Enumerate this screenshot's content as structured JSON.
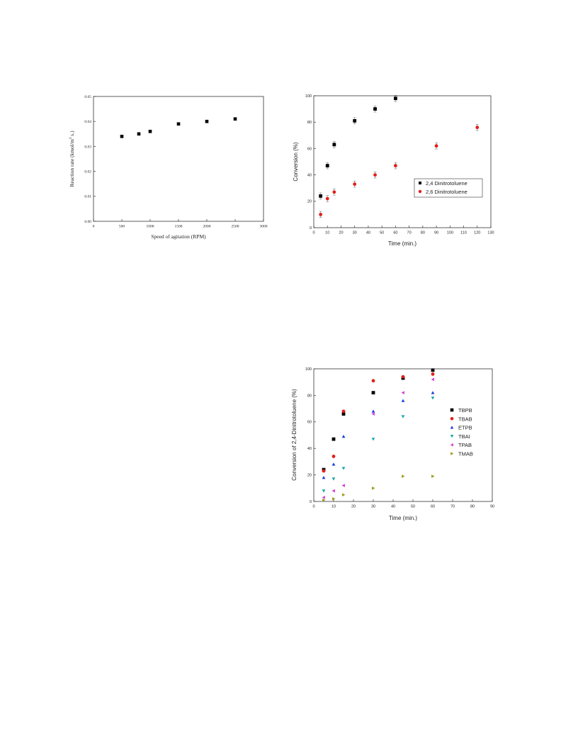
{
  "chart_data": [
    {
      "type": "scatter",
      "title": "",
      "xlabel": "Speed of agitation (RPM)",
      "ylabel_main": "Reaction rate (kmol/m",
      "ylabel_sup": "3",
      "ylabel_tail": " s.)",
      "xlim": [
        0,
        3000
      ],
      "ylim": [
        0,
        0.05
      ],
      "xticks": [
        "0",
        "500",
        "1000",
        "1500",
        "2000",
        "2500",
        "3000"
      ],
      "yticks": [
        "0.00",
        "0.01",
        "0.02",
        "0.03",
        "0.04",
        "0.05"
      ],
      "series": [
        {
          "color": "#000000",
          "marker": "square",
          "x": [
            500,
            800,
            1000,
            1500,
            2000,
            2500
          ],
          "y": [
            0.034,
            0.035,
            0.036,
            0.039,
            0.04,
            0.041
          ]
        }
      ],
      "grid": false
    },
    {
      "type": "scatter",
      "title": "",
      "xlabel": "Time (min.)",
      "ylabel": "Conversion (%)",
      "xlim": [
        0,
        130
      ],
      "ylim": [
        0,
        100
      ],
      "xticks": [
        "0",
        "10",
        "20",
        "30",
        "40",
        "50",
        "60",
        "70",
        "80",
        "90",
        "100",
        "110",
        "120",
        "130"
      ],
      "yticks": [
        "0",
        "20",
        "40",
        "60",
        "80",
        "100"
      ],
      "legend_position": "center-right",
      "series": [
        {
          "name": "2,4 Dinitrotoluene",
          "color": "#000000",
          "marker": "square",
          "x": [
            5,
            10,
            15,
            30,
            45,
            60
          ],
          "y": [
            24,
            47,
            63,
            81,
            90,
            98
          ]
        },
        {
          "name": "2,6 Dinitrotoluene",
          "color": "#e0201b",
          "marker": "circle",
          "x": [
            5,
            10,
            15,
            30,
            45,
            60,
            90,
            120
          ],
          "y": [
            10,
            22,
            27,
            33,
            40,
            47,
            62,
            76
          ]
        }
      ],
      "grid": false
    },
    {
      "type": "scatter",
      "title": "",
      "xlabel": "Time (min.)",
      "ylabel": "Conversion of 2,4-Dinitrotoluene (%)",
      "xlim": [
        0,
        90
      ],
      "ylim": [
        0,
        100
      ],
      "xticks": [
        "0",
        "10",
        "20",
        "30",
        "40",
        "50",
        "60",
        "70",
        "80",
        "90"
      ],
      "yticks": [
        "0",
        "20",
        "40",
        "60",
        "80",
        "100"
      ],
      "legend_position": "right",
      "series": [
        {
          "name": "TBPB",
          "color": "#000000",
          "marker": "square",
          "x": [
            5,
            10,
            15,
            30,
            45,
            60
          ],
          "y": [
            24,
            47,
            66,
            82,
            93,
            99
          ]
        },
        {
          "name": "TBAB",
          "color": "#e0201b",
          "marker": "circle",
          "x": [
            5,
            10,
            15,
            30,
            45,
            60
          ],
          "y": [
            23,
            34,
            68,
            91,
            94,
            96
          ]
        },
        {
          "name": "ETPB",
          "color": "#1f3fdc",
          "marker": "triangle-up",
          "x": [
            5,
            10,
            15,
            30,
            45,
            60
          ],
          "y": [
            18,
            28,
            49,
            68,
            76,
            82
          ]
        },
        {
          "name": "TBAI",
          "color": "#1aa7a7",
          "marker": "triangle-down",
          "x": [
            5,
            10,
            15,
            30,
            45,
            60
          ],
          "y": [
            8,
            17,
            25,
            47,
            64,
            78
          ]
        },
        {
          "name": "TPAB",
          "color": "#d43ed4",
          "marker": "triangle-left",
          "x": [
            5,
            10,
            15,
            30,
            45,
            60
          ],
          "y": [
            3,
            8,
            12,
            66,
            82,
            92
          ]
        },
        {
          "name": "TMAB",
          "color": "#9c9c1a",
          "marker": "triangle-right",
          "x": [
            5,
            10,
            15,
            30,
            45,
            60
          ],
          "y": [
            1,
            2,
            5,
            10,
            19,
            19
          ]
        }
      ],
      "grid": false
    }
  ]
}
